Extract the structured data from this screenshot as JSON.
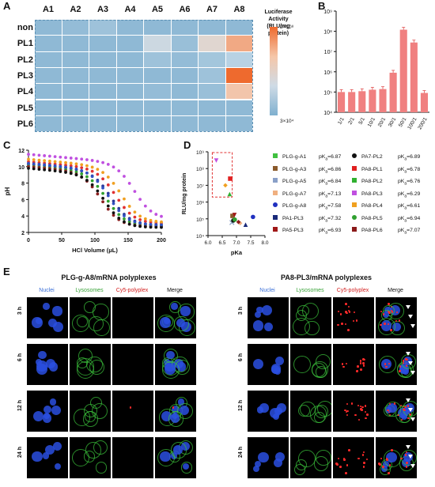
{
  "panels": {
    "A": "A",
    "B": "B",
    "C": "C",
    "D": "D",
    "E": "E"
  },
  "chart_data": [
    {
      "type": "heatmap",
      "columns": [
        "A1",
        "A2",
        "A3",
        "A4",
        "A5",
        "A6",
        "A7",
        "A8"
      ],
      "rows": [
        "non",
        "PL1",
        "PL2",
        "PL3",
        "PL4",
        "PL5",
        "PL6"
      ],
      "values_log10": [
        [
          4.8,
          4.9,
          5.1,
          4.8,
          4.8,
          4.8,
          4.8,
          4.8
        ],
        [
          4.8,
          4.8,
          4.8,
          4.8,
          6.0,
          5.0,
          6.4,
          7.4
        ],
        [
          4.8,
          4.8,
          4.8,
          4.8,
          5.1,
          4.9,
          5.2,
          5.6
        ],
        [
          4.8,
          4.8,
          4.8,
          4.8,
          4.8,
          4.8,
          5.1,
          8.3
        ],
        [
          4.8,
          4.8,
          4.8,
          4.8,
          4.9,
          4.8,
          5.0,
          7.0
        ],
        [
          4.8,
          4.8,
          4.8,
          4.8,
          4.8,
          4.8,
          4.8,
          4.8
        ],
        [
          4.8,
          4.8,
          4.8,
          4.8,
          4.8,
          4.8,
          4.8,
          4.8
        ]
      ],
      "legend_title": "Luciferase Activity (RLU/mg protein)",
      "legend_max": "2×10⁸",
      "legend_min": "3×10⁴",
      "color_low": "#7fb0cf",
      "color_high": "#ee6a2e"
    },
    {
      "type": "bar",
      "ylabel": "",
      "yscale": "log",
      "ylim": [
        10000,
        1000000000
      ],
      "yticks": [
        "10⁴",
        "10⁵",
        "10⁶",
        "10⁷",
        "10⁸",
        "10⁹"
      ],
      "categories": [
        "1/1",
        "2/1",
        "5/1",
        "10/1",
        "20/1",
        "30/1",
        "50/1",
        "100/1",
        "200/1"
      ],
      "values": [
        100000,
        100000,
        110000,
        130000,
        140000,
        900000,
        120000000,
        28000000,
        90000
      ],
      "bar_color": "#f08080"
    },
    {
      "type": "scatter",
      "xlabel": "HCl Volume (μL)",
      "ylabel": "pH",
      "xlim": [
        0,
        200
      ],
      "ylim": [
        2,
        12
      ],
      "xticks": [
        "0",
        "50",
        "100",
        "150",
        "200"
      ],
      "yticks": [
        "2",
        "4",
        "6",
        "8",
        "10",
        "12"
      ],
      "series": [
        {
          "color": "#2a3a9a",
          "x0": 125,
          "ystart": 10.3,
          "yend": 2.9
        },
        {
          "color": "#e03030",
          "x0": 132,
          "ystart": 10.6,
          "yend": 3.1
        },
        {
          "color": "#f0a020",
          "x0": 140,
          "ystart": 10.9,
          "yend": 3.2
        },
        {
          "color": "#30a030",
          "x0": 118,
          "ystart": 10.1,
          "yend": 2.8
        },
        {
          "color": "#c050e0",
          "x0": 160,
          "ystart": 11.5,
          "yend": 3.6
        },
        {
          "color": "#8b2020",
          "x0": 110,
          "ystart": 10.0,
          "yend": 2.7
        },
        {
          "color": "#111111",
          "x0": 115,
          "ystart": 9.8,
          "yend": 2.6
        },
        {
          "color": "#3050c0",
          "x0": 122,
          "ystart": 10.4,
          "yend": 2.9
        }
      ]
    },
    {
      "type": "scatter",
      "xlabel": "pKa",
      "ylabel": "RLU/mg protein",
      "yscale": "log",
      "xlim": [
        6.0,
        8.0
      ],
      "ylim": [
        10000,
        1000000000
      ],
      "xticks": [
        "6.0",
        "6.5",
        "7.0",
        "7.5",
        "8.0"
      ],
      "yticks": [
        "10⁴",
        "10⁵",
        "10⁶",
        "10⁷",
        "10⁸",
        "10⁹"
      ],
      "points": [
        {
          "name": "PLG-g-A1",
          "pKa": "6.87",
          "x": 6.87,
          "y": 70000,
          "color": "#40c040",
          "marker": "star"
        },
        {
          "name": "PLG-g-A3",
          "pKa": "6.86",
          "x": 6.86,
          "y": 150000,
          "color": "#8b5a2b",
          "marker": "square"
        },
        {
          "name": "PLG-g-A5",
          "pKa": "6.84",
          "x": 6.84,
          "y": 60000,
          "color": "#8aa0c8",
          "marker": "x"
        },
        {
          "name": "PLG-g-A7",
          "pKa": "7.13",
          "x": 7.13,
          "y": 55000,
          "color": "#f0b080",
          "marker": "diamond"
        },
        {
          "name": "PLG-g-A8",
          "pKa": "7.58",
          "x": 7.58,
          "y": 130000,
          "color": "#2030c0",
          "marker": "circle"
        },
        {
          "name": "PA1-PL3",
          "pKa": "7.32",
          "x": 7.32,
          "y": 45000,
          "color": "#1a2a7a",
          "marker": "triangle"
        },
        {
          "name": "PA5-PL3",
          "pKa": "6.93",
          "x": 6.93,
          "y": 170000,
          "color": "#a01818",
          "marker": "tri-down"
        },
        {
          "name": "PA7-PL2",
          "pKa": "6.89",
          "x": 6.89,
          "y": 80000,
          "color": "#111111",
          "marker": "circle"
        },
        {
          "name": "PA8-PL1",
          "pKa": "6.78",
          "x": 6.78,
          "y": 25000000,
          "color": "#e02020",
          "marker": "square"
        },
        {
          "name": "PA8-PL2",
          "pKa": "6.76",
          "x": 6.76,
          "y": 3000000,
          "color": "#30b030",
          "marker": "triangle"
        },
        {
          "name": "PA8-PL3",
          "pKa": "6.29",
          "x": 6.29,
          "y": 300000000,
          "color": "#c050e0",
          "marker": "tri-down"
        },
        {
          "name": "PA8-PL4",
          "pKa": "6.61",
          "x": 6.61,
          "y": 10000000,
          "color": "#f0a020",
          "marker": "diamond"
        },
        {
          "name": "PA8-PL5",
          "pKa": "6.94",
          "x": 6.94,
          "y": 90000,
          "color": "#30a030",
          "marker": "circle"
        },
        {
          "name": "PA8-PL6",
          "pKa": "7.07",
          "x": 7.07,
          "y": 65000,
          "color": "#8b1a1a",
          "marker": "diamond"
        }
      ]
    }
  ],
  "microscopy": {
    "left_title": "PLG-g-A8/mRNA polyplexes",
    "right_title": "PA8-PL3/mRNA polyplexes",
    "channels": [
      "Nuclei",
      "Lysosomes",
      "Cy5-polyplex",
      "Merge"
    ],
    "channel_colors": [
      "#3a6fd8",
      "#39a339",
      "#d42020",
      "#111111"
    ],
    "timepoints": [
      "3 h",
      "6 h",
      "12 h",
      "24 h"
    ]
  }
}
